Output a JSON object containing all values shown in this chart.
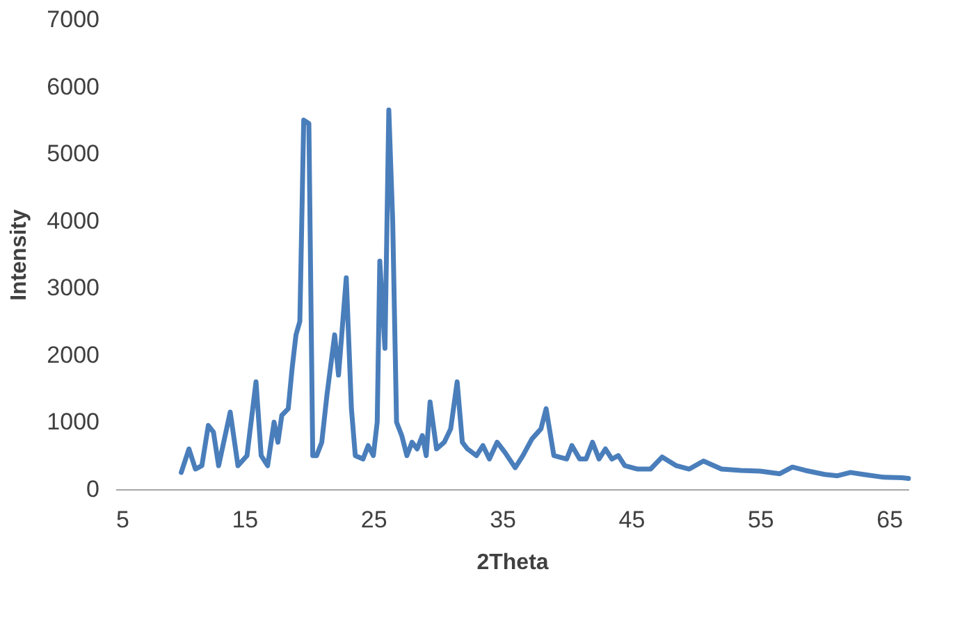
{
  "chart_data": {
    "type": "line",
    "xlabel": "2Theta",
    "ylabel": "Intensity",
    "xlim": [
      5,
      66.5
    ],
    "xticks": [
      5,
      15,
      25,
      35,
      45,
      55,
      65
    ],
    "ylim": [
      0,
      7000
    ],
    "yticks": [
      0,
      1000,
      2000,
      3000,
      4000,
      5000,
      6000,
      7000
    ],
    "grid": false,
    "legend": false,
    "marker": "none",
    "line_style": "solid",
    "series": [
      {
        "color": "#4a7ebb",
        "x": [
          10.1,
          10.7,
          11.2,
          11.7,
          12.2,
          12.6,
          13.0,
          13.9,
          14.5,
          15.2,
          15.9,
          16.3,
          16.8,
          17.3,
          17.6,
          17.9,
          18.4,
          18.7,
          19.0,
          19.3,
          19.6,
          20.0,
          20.3,
          20.6,
          21.0,
          21.4,
          22.0,
          22.3,
          22.9,
          23.3,
          23.6,
          24.2,
          24.6,
          25.0,
          25.3,
          25.5,
          25.9,
          26.2,
          26.5,
          26.8,
          27.2,
          27.6,
          28.0,
          28.4,
          28.8,
          29.1,
          29.4,
          29.9,
          30.5,
          31.0,
          31.5,
          31.9,
          32.3,
          33.0,
          33.5,
          34.0,
          34.6,
          35.2,
          36.0,
          36.6,
          37.3,
          38.0,
          38.4,
          39.0,
          40.0,
          40.4,
          41.0,
          41.5,
          42.0,
          42.5,
          43.0,
          43.5,
          44.0,
          44.5,
          45.5,
          46.5,
          47.4,
          48.5,
          49.5,
          50.6,
          52.0,
          53.5,
          55.0,
          56.5,
          57.5,
          58.5,
          60.0,
          61.0,
          62.0,
          63.0,
          64.5,
          66.0,
          66.5
        ],
        "values": [
          250,
          600,
          300,
          350,
          950,
          850,
          350,
          1150,
          350,
          500,
          1600,
          500,
          350,
          1000,
          700,
          1100,
          1200,
          1800,
          2300,
          2500,
          5500,
          5450,
          500,
          500,
          700,
          1400,
          2300,
          1700,
          3150,
          1200,
          500,
          450,
          650,
          500,
          1000,
          3400,
          2100,
          5650,
          4000,
          1000,
          800,
          500,
          700,
          600,
          800,
          500,
          1300,
          600,
          700,
          900,
          1600,
          700,
          600,
          500,
          650,
          450,
          700,
          550,
          320,
          500,
          750,
          900,
          1200,
          500,
          450,
          650,
          450,
          450,
          700,
          450,
          600,
          450,
          500,
          350,
          300,
          300,
          480,
          350,
          300,
          420,
          300,
          280,
          270,
          230,
          330,
          280,
          220,
          200,
          250,
          220,
          180,
          170,
          160
        ]
      }
    ]
  }
}
